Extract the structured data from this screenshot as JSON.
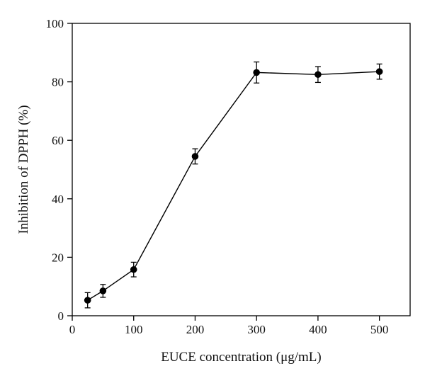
{
  "chart_data": {
    "type": "line",
    "title": "",
    "xlabel": "EUCE concentration (μg/mL)",
    "ylabel": "Inhibition of DPPH (%)",
    "xlim": [
      0,
      550
    ],
    "ylim": [
      0,
      100
    ],
    "xticks": [
      "0",
      "100",
      "200",
      "300",
      "400",
      "500"
    ],
    "yticks": [
      "0",
      "20",
      "40",
      "60",
      "80",
      "100"
    ],
    "grid": false,
    "legend": "none",
    "series": [
      {
        "x": [
          25,
          50,
          100,
          200,
          300,
          400,
          500
        ],
        "y": [
          5.3,
          8.5,
          15.8,
          54.5,
          83.2,
          82.5,
          83.5
        ],
        "error": [
          2.6,
          2.2,
          2.5,
          2.6,
          3.6,
          2.7,
          2.6
        ]
      }
    ],
    "colors": {
      "line": "#000000",
      "marker": "#000000",
      "axis": "#000000"
    }
  }
}
